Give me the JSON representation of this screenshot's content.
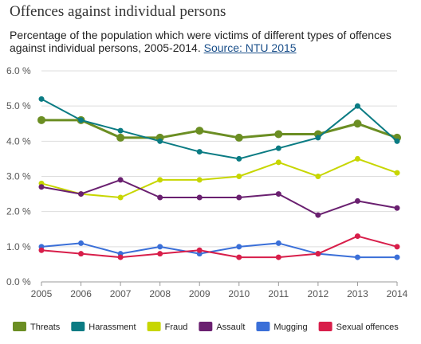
{
  "header": {
    "title": "Offences against individual persons",
    "subtitle": "Percentage of the population which were victims of different types of offences against individual persons, 2005-2014.",
    "source_label": "Source: NTU 2015"
  },
  "chart_data": {
    "type": "line",
    "title": "Offences against individual persons",
    "xlabel": "",
    "ylabel": "",
    "x": [
      2005,
      2006,
      2007,
      2008,
      2009,
      2010,
      2011,
      2012,
      2013,
      2014
    ],
    "ylim": [
      0,
      6
    ],
    "yticks": [
      "0.0 %",
      "1.0 %",
      "2.0 %",
      "3.0 %",
      "4.0 %",
      "5.0 %",
      "6.0 %"
    ],
    "grid": true,
    "legend_position": "bottom",
    "series": [
      {
        "name": "Threats",
        "color": "#6b8e23",
        "values": [
          4.6,
          4.6,
          4.1,
          4.1,
          4.3,
          4.1,
          4.2,
          4.2,
          4.5,
          4.1
        ]
      },
      {
        "name": "Harassment",
        "color": "#0a7b83",
        "values": [
          5.2,
          4.6,
          4.3,
          4.0,
          3.7,
          3.5,
          3.8,
          4.1,
          5.0,
          4.0
        ]
      },
      {
        "name": "Fraud",
        "color": "#c7d600",
        "values": [
          2.8,
          2.5,
          2.4,
          2.9,
          2.9,
          3.0,
          3.4,
          3.0,
          3.5,
          3.1
        ]
      },
      {
        "name": "Assault",
        "color": "#6a2070",
        "values": [
          2.7,
          2.5,
          2.9,
          2.4,
          2.4,
          2.4,
          2.5,
          1.9,
          2.3,
          2.1
        ]
      },
      {
        "name": "Mugging",
        "color": "#3a6fd8",
        "values": [
          1.0,
          1.1,
          0.8,
          1.0,
          0.8,
          1.0,
          1.1,
          0.8,
          0.7,
          0.7
        ]
      },
      {
        "name": "Sexual offences",
        "color": "#d81e4a",
        "values": [
          0.9,
          0.8,
          0.7,
          0.8,
          0.9,
          0.7,
          0.7,
          0.8,
          1.3,
          1.0
        ]
      }
    ]
  }
}
